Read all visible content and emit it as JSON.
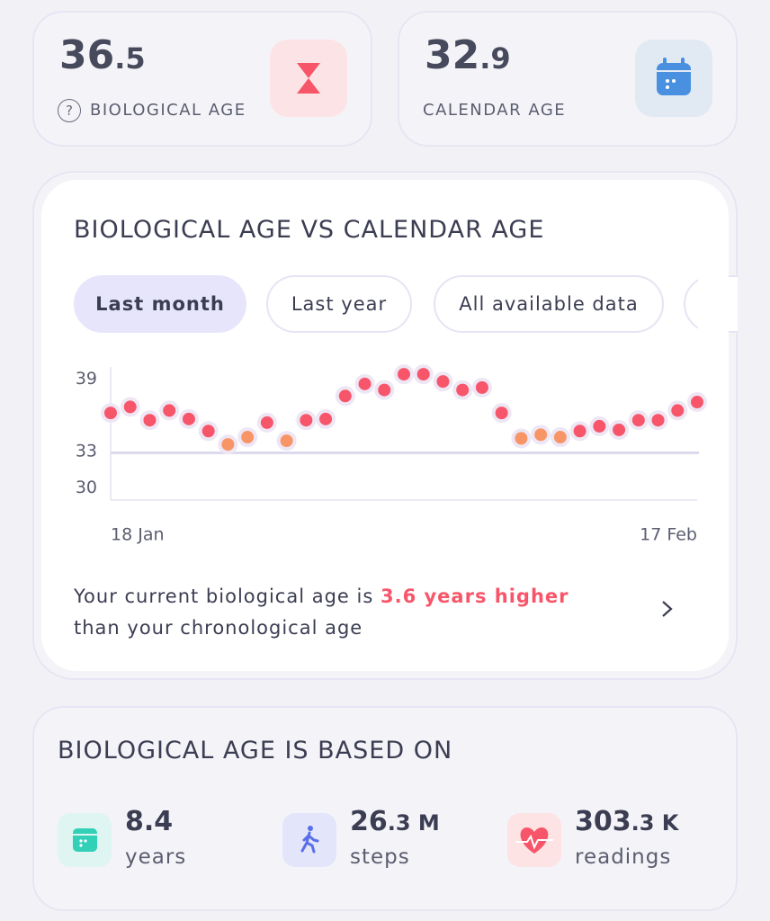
{
  "cards": [
    {
      "value_int": "36",
      "value_dec": ".5",
      "label": "BIOLOGICAL AGE"
    },
    {
      "value_int": "32",
      "value_dec": ".9",
      "label": "CALENDAR AGE"
    }
  ],
  "chart_data": {
    "type": "scatter",
    "title": "BIOLOGICAL AGE VS CALENDAR AGE",
    "tabs": [
      "Last month",
      "Last year",
      "All available data"
    ],
    "selected_tab": 0,
    "categories": [
      "18 Jan",
      null,
      null,
      null,
      null,
      null,
      null,
      null,
      null,
      null,
      null,
      null,
      null,
      null,
      null,
      null,
      null,
      null,
      null,
      null,
      null,
      null,
      null,
      null,
      null,
      null,
      null,
      null,
      null,
      null,
      "17 Feb"
    ],
    "values": [
      36.2,
      36.7,
      35.6,
      36.4,
      35.7,
      34.7,
      33.6,
      34.2,
      35.4,
      33.9,
      35.6,
      35.7,
      37.6,
      38.6,
      38.1,
      39.4,
      39.4,
      38.8,
      38.1,
      38.3,
      36.2,
      34.1,
      34.4,
      34.2,
      34.7,
      35.1,
      34.8,
      35.6,
      35.6,
      36.4,
      37.1
    ],
    "colors": [
      "#f7566a",
      "#f7566a",
      "#f7566a",
      "#f7566a",
      "#f7566a",
      "#f7566a",
      "#f89567",
      "#f89567",
      "#f7566a",
      "#f89567",
      "#f7566a",
      "#f7566a",
      "#f7566a",
      "#f7566a",
      "#f7566a",
      "#f7566a",
      "#f7566a",
      "#f7566a",
      "#f7566a",
      "#f7566a",
      "#f7566a",
      "#f89567",
      "#f89567",
      "#f89567",
      "#f7566a",
      "#f7566a",
      "#f7566a",
      "#f7566a",
      "#f7566a",
      "#f7566a",
      "#f7566a"
    ],
    "ylim": [
      29,
      40
    ],
    "yticks": [
      30,
      33,
      39
    ],
    "reference_line": 32.9,
    "reference_color": "#dcdaec"
  },
  "message": {
    "before": "Your current biological age is",
    "highlight": "3.6 years higher",
    "after": "than your chronological age"
  },
  "based_on": {
    "title": "BIOLOGICAL AGE IS BASED ON",
    "items": [
      {
        "value_int": "8.4",
        "label": "years"
      },
      {
        "value_int": "26",
        "value_dec": ".3 M",
        "label": "steps"
      },
      {
        "value_int": "303",
        "value_dec": ".3 K",
        "label": "readings"
      }
    ]
  }
}
